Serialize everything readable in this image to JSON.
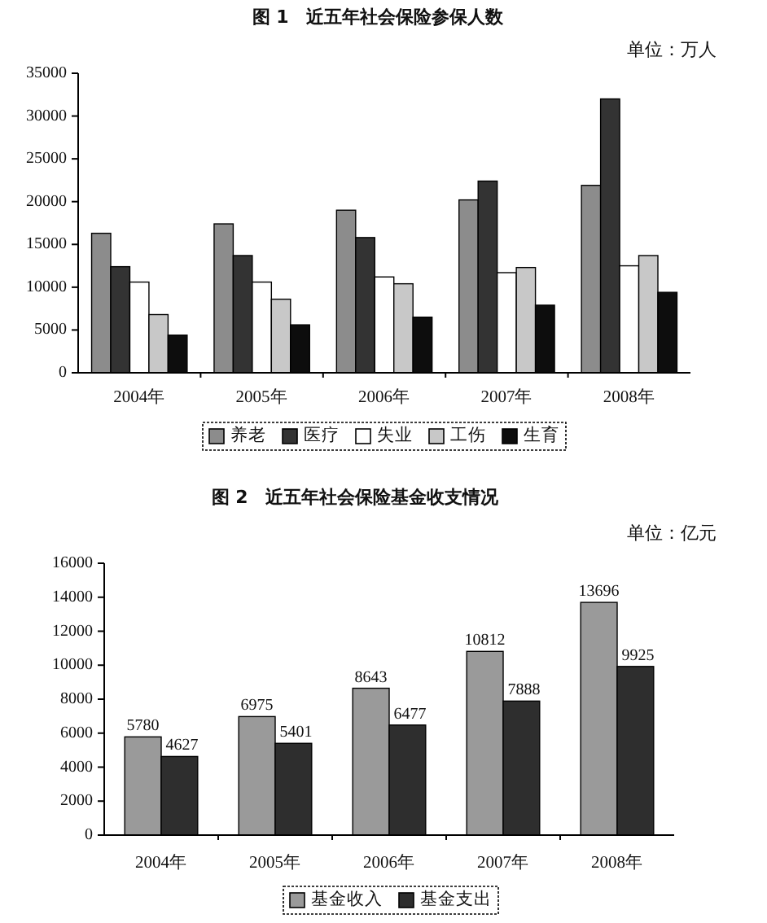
{
  "chart_data": [
    {
      "type": "bar",
      "title": "图 1　近五年社会保险参保人数",
      "annotations": [
        "单位：万人"
      ],
      "categories": [
        "2004年",
        "2005年",
        "2006年",
        "2007年",
        "2008年"
      ],
      "series": [
        {
          "name": "养老",
          "color": "#8c8c8c",
          "values": [
            16300,
            17400,
            19000,
            20200,
            21900
          ]
        },
        {
          "name": "医疗",
          "color": "#333333",
          "values": [
            12400,
            13700,
            15800,
            22400,
            32000
          ]
        },
        {
          "name": "失业",
          "color": "#ffffff",
          "values": [
            10600,
            10600,
            11200,
            11700,
            12500
          ]
        },
        {
          "name": "工伤",
          "color": "#c8c8c8",
          "values": [
            6800,
            8600,
            10400,
            12300,
            13700
          ]
        },
        {
          "name": "生育",
          "color": "#0d0d0d",
          "values": [
            4400,
            5600,
            6500,
            7900,
            9400
          ]
        }
      ],
      "ylim": [
        0,
        35000
      ],
      "yticks": [
        0,
        5000,
        10000,
        15000,
        20000,
        25000,
        30000,
        35000
      ],
      "legend": "bottom"
    },
    {
      "type": "bar",
      "title": "图 2　近五年社会保险基金收支情况",
      "annotations": [
        "单位：亿元"
      ],
      "categories": [
        "2004年",
        "2005年",
        "2006年",
        "2007年",
        "2008年"
      ],
      "series": [
        {
          "name": "基金收入",
          "color": "#9a9a9a",
          "values": [
            5780,
            6975,
            8643,
            10812,
            13696
          ]
        },
        {
          "name": "基金支出",
          "color": "#2e2e2e",
          "values": [
            4627,
            5401,
            6477,
            7888,
            9925
          ]
        }
      ],
      "ylim": [
        0,
        16000
      ],
      "yticks": [
        0,
        2000,
        4000,
        6000,
        8000,
        10000,
        12000,
        14000,
        16000
      ],
      "legend": "bottom",
      "data_labels": true
    }
  ]
}
